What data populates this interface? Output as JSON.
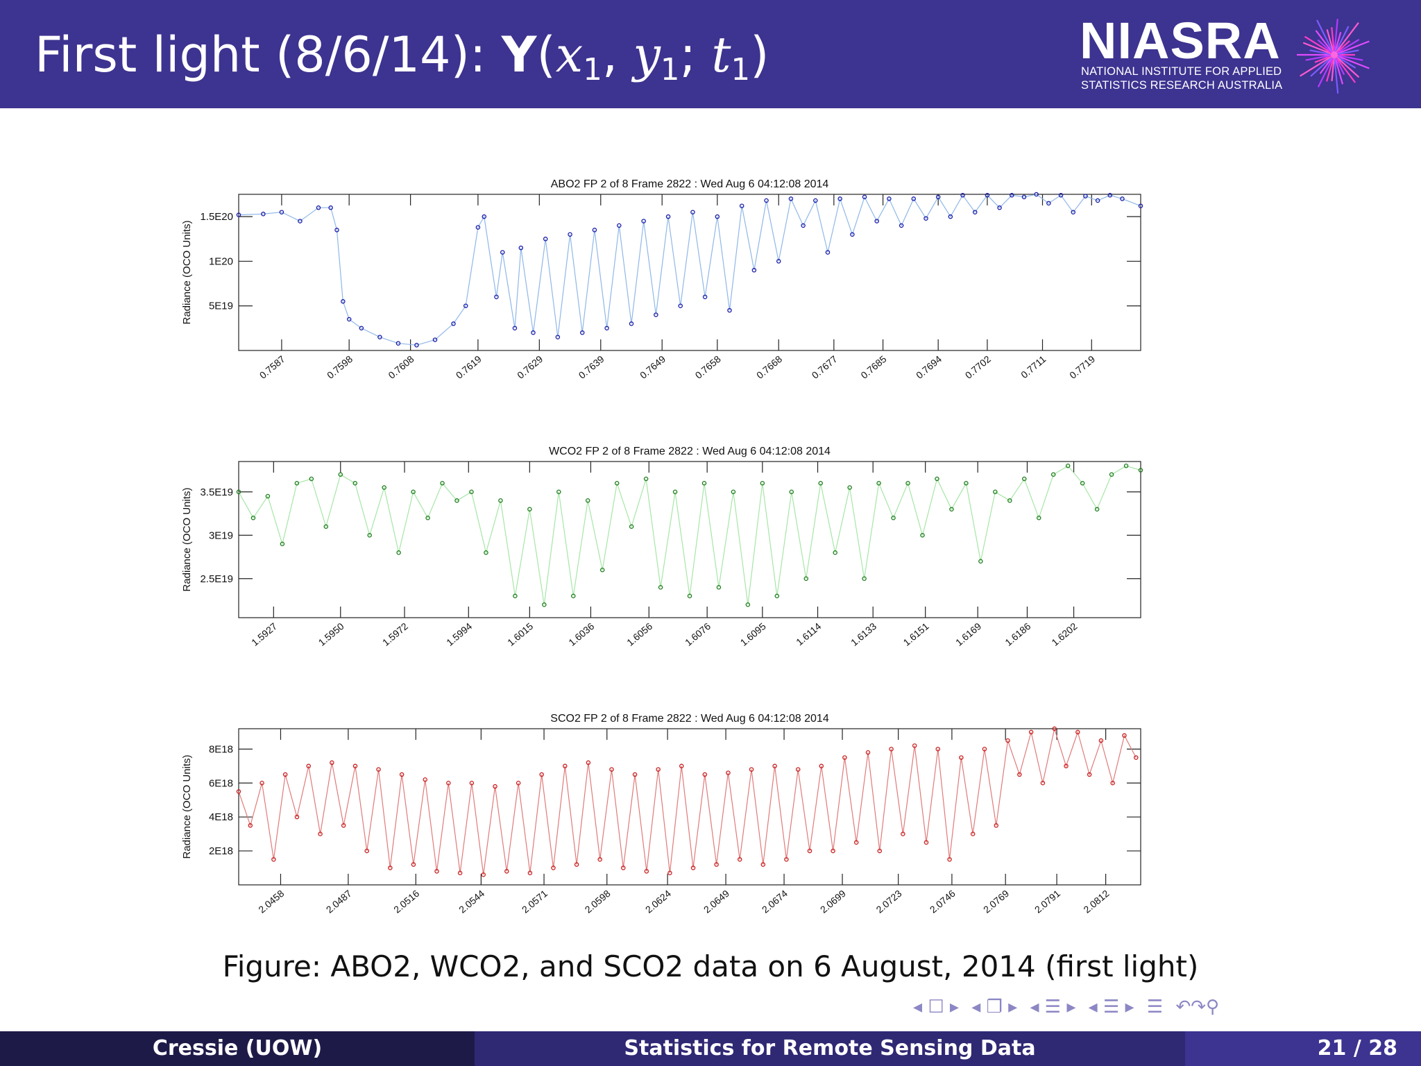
{
  "slide": {
    "title_plain": "First light (8/6/14): ",
    "title_bold": "Y",
    "title_paren_open": "(",
    "title_x": "x",
    "title_x_sub": "1",
    "title_comma": ", ",
    "title_y": "y",
    "title_y_sub": "1",
    "title_semi": "; ",
    "title_t": "t",
    "title_t_sub": "1",
    "title_paren_close": ")"
  },
  "logo": {
    "word": "NIASRA",
    "line1": "NATIONAL INSTITUTE FOR APPLIED",
    "line2": "STATISTICS RESEARCH AUSTRALIA"
  },
  "caption": "Figure: ABO2, WCO2, and SCO2 data on 6 August, 2014 (first light)",
  "footer": {
    "author": "Cressie  (UOW)",
    "talk_title": "Statistics for Remote Sensing Data",
    "page": "21 / 28"
  },
  "chart_data": [
    {
      "type": "scatter",
      "title": "ABO2 FP 2 of 8    Frame 2822 : Wed Aug  6 04:12:08 2014",
      "ylabel": "Radiance (OCO Units)",
      "color": "#1a1aa8",
      "line_color": "#8fb7e8",
      "xlim": [
        0.758,
        0.7727
      ],
      "ylim": [
        0,
        1.75e+20
      ],
      "xticks": [
        0.7587,
        0.7598,
        0.7608,
        0.7619,
        0.7629,
        0.7639,
        0.7649,
        0.7658,
        0.7668,
        0.7677,
        0.7685,
        0.7694,
        0.7702,
        0.7711,
        0.7719
      ],
      "xtick_labels": [
        "0.7587",
        "0.7598",
        "0.7608",
        "0.7619",
        "0.7629",
        "0.7639",
        "0.7649",
        "0.7658",
        "0.7668",
        "0.7677",
        "0.7685",
        "0.7694",
        "0.7702",
        "0.7711",
        "0.7719"
      ],
      "yticks": [
        5e+19,
        1e+20,
        1.5e+20
      ],
      "ytick_labels": [
        "5E19",
        "1E20",
        "1.5E20"
      ],
      "x": [
        0.758,
        0.7584,
        0.7587,
        0.759,
        0.7593,
        0.7595,
        0.7596,
        0.7597,
        0.7598,
        0.76,
        0.7603,
        0.7606,
        0.7609,
        0.7612,
        0.7615,
        0.7617,
        0.7619,
        0.762,
        0.7622,
        0.7623,
        0.7625,
        0.7626,
        0.7628,
        0.763,
        0.7632,
        0.7634,
        0.7636,
        0.7638,
        0.764,
        0.7642,
        0.7644,
        0.7646,
        0.7648,
        0.765,
        0.7652,
        0.7654,
        0.7656,
        0.7658,
        0.766,
        0.7662,
        0.7664,
        0.7666,
        0.7668,
        0.767,
        0.7672,
        0.7674,
        0.7676,
        0.7678,
        0.768,
        0.7682,
        0.7684,
        0.7686,
        0.7688,
        0.769,
        0.7692,
        0.7694,
        0.7696,
        0.7698,
        0.77,
        0.7702,
        0.7704,
        0.7706,
        0.7708,
        0.771,
        0.7712,
        0.7714,
        0.7716,
        0.7718,
        0.772,
        0.7722,
        0.7724,
        0.7727
      ],
      "y": [
        1.52e+20,
        1.53e+20,
        1.55e+20,
        1.45e+20,
        1.6e+20,
        1.6e+20,
        1.35e+20,
        5.5e+19,
        3.5e+19,
        2.5e+19,
        1.5e+19,
        8e+18,
        6e+18,
        1.2e+19,
        3e+19,
        5e+19,
        1.38e+20,
        1.5e+20,
        6e+19,
        1.1e+20,
        2.5e+19,
        1.15e+20,
        2e+19,
        1.25e+20,
        1.5e+19,
        1.3e+20,
        2e+19,
        1.35e+20,
        2.5e+19,
        1.4e+20,
        3e+19,
        1.45e+20,
        4e+19,
        1.5e+20,
        5e+19,
        1.55e+20,
        6e+19,
        1.5e+20,
        4.5e+19,
        1.62e+20,
        9e+19,
        1.68e+20,
        1e+20,
        1.7e+20,
        1.4e+20,
        1.68e+20,
        1.1e+20,
        1.7e+20,
        1.3e+20,
        1.72e+20,
        1.45e+20,
        1.7e+20,
        1.4e+20,
        1.7e+20,
        1.48e+20,
        1.72e+20,
        1.5e+20,
        1.74e+20,
        1.55e+20,
        1.74e+20,
        1.6e+20,
        1.74e+20,
        1.72e+20,
        1.75e+20,
        1.65e+20,
        1.74e+20,
        1.55e+20,
        1.73e+20,
        1.68e+20,
        1.74e+20,
        1.7e+20,
        1.62e+20
      ]
    },
    {
      "type": "scatter",
      "title": "WCO2 FP 2 of 8    Frame 2822 : Wed Aug  6 04:12:08 2014",
      "ylabel": "Radiance (OCO Units)",
      "color": "#1a7a1a",
      "line_color": "#a6e6a6",
      "xlim": [
        1.5915,
        1.6225
      ],
      "ylim": [
        2.05e+19,
        3.85e+19
      ],
      "xticks": [
        1.5927,
        1.595,
        1.5972,
        1.5994,
        1.6015,
        1.6036,
        1.6056,
        1.6076,
        1.6095,
        1.6114,
        1.6133,
        1.6151,
        1.6169,
        1.6186,
        1.6202
      ],
      "xtick_labels": [
        "1.5927",
        "1.5950",
        "1.5972",
        "1.5994",
        "1.6015",
        "1.6036",
        "1.6056",
        "1.6076",
        "1.6095",
        "1.6114",
        "1.6133",
        "1.6151",
        "1.6169",
        "1.6186",
        "1.6202"
      ],
      "yticks": [
        2.5e+19,
        3e+19,
        3.5e+19
      ],
      "ytick_labels": [
        "2.5E19",
        "3E19",
        "3.5E19"
      ],
      "x": [
        1.5915,
        1.592,
        1.5925,
        1.593,
        1.5935,
        1.594,
        1.5945,
        1.595,
        1.5955,
        1.596,
        1.5965,
        1.597,
        1.5975,
        1.598,
        1.5985,
        1.599,
        1.5995,
        1.6,
        1.6005,
        1.601,
        1.6015,
        1.602,
        1.6025,
        1.603,
        1.6035,
        1.604,
        1.6045,
        1.605,
        1.6055,
        1.606,
        1.6065,
        1.607,
        1.6075,
        1.608,
        1.6085,
        1.609,
        1.6095,
        1.61,
        1.6105,
        1.611,
        1.6115,
        1.612,
        1.6125,
        1.613,
        1.6135,
        1.614,
        1.6145,
        1.615,
        1.6155,
        1.616,
        1.6165,
        1.617,
        1.6175,
        1.618,
        1.6185,
        1.619,
        1.6195,
        1.62,
        1.6205,
        1.621,
        1.6215,
        1.622,
        1.6225
      ],
      "y": [
        3.5e+19,
        3.2e+19,
        3.45e+19,
        2.9e+19,
        3.6e+19,
        3.65e+19,
        3.1e+19,
        3.7e+19,
        3.6e+19,
        3e+19,
        3.55e+19,
        2.8e+19,
        3.5e+19,
        3.2e+19,
        3.6e+19,
        3.4e+19,
        3.5e+19,
        2.8e+19,
        3.4e+19,
        2.3e+19,
        3.3e+19,
        2.2e+19,
        3.5e+19,
        2.3e+19,
        3.4e+19,
        2.6e+19,
        3.6e+19,
        3.1e+19,
        3.65e+19,
        2.4e+19,
        3.5e+19,
        2.3e+19,
        3.6e+19,
        2.4e+19,
        3.5e+19,
        2.2e+19,
        3.6e+19,
        2.3e+19,
        3.5e+19,
        2.5e+19,
        3.6e+19,
        2.8e+19,
        3.55e+19,
        2.5e+19,
        3.6e+19,
        3.2e+19,
        3.6e+19,
        3e+19,
        3.65e+19,
        3.3e+19,
        3.6e+19,
        2.7e+19,
        3.5e+19,
        3.4e+19,
        3.65e+19,
        3.2e+19,
        3.7e+19,
        3.8e+19,
        3.6e+19,
        3.3e+19,
        3.7e+19,
        3.8e+19,
        3.75e+19
      ]
    },
    {
      "type": "scatter",
      "title": "SCO2 FP 2 of 8    Frame 2822 : Wed Aug  6 04:12:08 2014",
      "ylabel": "Radiance (OCO Units)",
      "color": "#c81e1e",
      "line_color": "#e07a7a",
      "xlim": [
        2.044,
        2.0827
      ],
      "ylim": [
        0,
        9.2e+18
      ],
      "xticks": [
        2.0458,
        2.0487,
        2.0516,
        2.0544,
        2.0571,
        2.0598,
        2.0624,
        2.0649,
        2.0674,
        2.0699,
        2.0723,
        2.0746,
        2.0769,
        2.0791,
        2.0812
      ],
      "xtick_labels": [
        "2.0458",
        "2.0487",
        "2.0516",
        "2.0544",
        "2.0571",
        "2.0598",
        "2.0624",
        "2.0649",
        "2.0674",
        "2.0699",
        "2.0723",
        "2.0746",
        "2.0769",
        "2.0791",
        "2.0812"
      ],
      "yticks": [
        2e+18,
        4e+18,
        6e+18,
        8e+18
      ],
      "ytick_labels": [
        "2E18",
        "4E18",
        "6E18",
        "8E18"
      ],
      "x": [
        2.044,
        2.0445,
        2.045,
        2.0455,
        2.046,
        2.0465,
        2.047,
        2.0475,
        2.048,
        2.0485,
        2.049,
        2.0495,
        2.05,
        2.0505,
        2.051,
        2.0515,
        2.052,
        2.0525,
        2.053,
        2.0535,
        2.054,
        2.0545,
        2.055,
        2.0555,
        2.056,
        2.0565,
        2.057,
        2.0575,
        2.058,
        2.0585,
        2.059,
        2.0595,
        2.06,
        2.0605,
        2.061,
        2.0615,
        2.062,
        2.0625,
        2.063,
        2.0635,
        2.064,
        2.0645,
        2.065,
        2.0655,
        2.066,
        2.0665,
        2.067,
        2.0675,
        2.068,
        2.0685,
        2.069,
        2.0695,
        2.07,
        2.0705,
        2.071,
        2.0715,
        2.072,
        2.0725,
        2.073,
        2.0735,
        2.074,
        2.0745,
        2.075,
        2.0755,
        2.076,
        2.0765,
        2.077,
        2.0775,
        2.078,
        2.0785,
        2.079,
        2.0795,
        2.08,
        2.0805,
        2.081,
        2.0815,
        2.082,
        2.0825
      ],
      "y": [
        5.5e+18,
        3.5e+18,
        6e+18,
        1.5e+18,
        6.5e+18,
        4e+18,
        7e+18,
        3e+18,
        7.2e+18,
        3.5e+18,
        7e+18,
        2e+18,
        6.8e+18,
        1e+18,
        6.5e+18,
        1.2e+18,
        6.2e+18,
        8e+17,
        6e+18,
        7e+17,
        6e+18,
        6e+17,
        5.8e+18,
        8e+17,
        6e+18,
        7e+17,
        6.5e+18,
        1e+18,
        7e+18,
        1.2e+18,
        7.2e+18,
        1.5e+18,
        6.8e+18,
        1e+18,
        6.5e+18,
        8e+17,
        6.8e+18,
        7e+17,
        7e+18,
        1e+18,
        6.5e+18,
        1.2e+18,
        6.6e+18,
        1.5e+18,
        6.8e+18,
        1.2e+18,
        7e+18,
        1.5e+18,
        6.8e+18,
        2e+18,
        7e+18,
        2e+18,
        7.5e+18,
        2.5e+18,
        7.8e+18,
        2e+18,
        8e+18,
        3e+18,
        8.2e+18,
        2.5e+18,
        8e+18,
        1.5e+18,
        7.5e+18,
        3e+18,
        8e+18,
        3.5e+18,
        8.5e+18,
        6.5e+18,
        9e+18,
        6e+18,
        9.2e+18,
        7e+18,
        9e+18,
        6.5e+18,
        8.5e+18,
        6e+18,
        8.8e+18,
        7.5e+18
      ]
    }
  ]
}
